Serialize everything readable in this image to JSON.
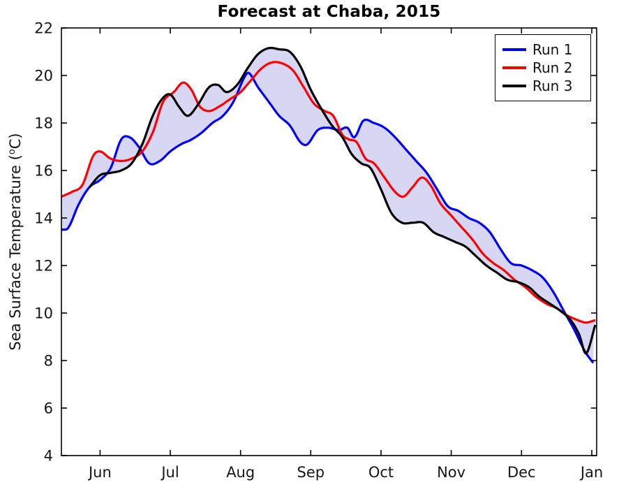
{
  "figure": {
    "background_color": "#ffffff",
    "axis_color": "#000000",
    "tick_label_color": "#151515"
  },
  "chart_data": {
    "type": "line",
    "title": "Forecast at Chaba, 2015",
    "xlabel": "",
    "ylabel": {
      "prefix": "Sea Surface Temperature (",
      "sup": "o",
      "suffix": "C)"
    },
    "x_range": [
      0.45,
      8.07
    ],
    "y_range": [
      4,
      22
    ],
    "y_ticks": [
      4,
      6,
      8,
      10,
      12,
      14,
      16,
      18,
      20,
      22
    ],
    "x_ticks": [
      {
        "x": 1,
        "label": "Jun"
      },
      {
        "x": 2,
        "label": "Jul"
      },
      {
        "x": 3,
        "label": "Aug"
      },
      {
        "x": 4,
        "label": "Sep"
      },
      {
        "x": 5,
        "label": "Oct"
      },
      {
        "x": 6,
        "label": "Nov"
      },
      {
        "x": 7,
        "label": "Dec"
      },
      {
        "x": 8,
        "label": "Jan"
      }
    ],
    "grid": false,
    "legend_position": "top-right",
    "band": {
      "type": "min-max-envelope",
      "color": "#7b7bdc",
      "opacity": 0.3
    },
    "series": [
      {
        "name": "Run 1",
        "color": "#0000ff",
        "points": [
          [
            0.45,
            13.5
          ],
          [
            0.55,
            13.6
          ],
          [
            0.7,
            14.6
          ],
          [
            0.85,
            15.3
          ],
          [
            1.0,
            15.6
          ],
          [
            1.15,
            16.1
          ],
          [
            1.3,
            17.3
          ],
          [
            1.42,
            17.4
          ],
          [
            1.55,
            17.0
          ],
          [
            1.7,
            16.3
          ],
          [
            1.85,
            16.4
          ],
          [
            2.0,
            16.8
          ],
          [
            2.15,
            17.1
          ],
          [
            2.3,
            17.3
          ],
          [
            2.45,
            17.6
          ],
          [
            2.6,
            18.0
          ],
          [
            2.75,
            18.3
          ],
          [
            2.9,
            18.9
          ],
          [
            3.05,
            19.9
          ],
          [
            3.12,
            20.1
          ],
          [
            3.25,
            19.5
          ],
          [
            3.4,
            18.9
          ],
          [
            3.55,
            18.3
          ],
          [
            3.7,
            17.9
          ],
          [
            3.85,
            17.2
          ],
          [
            3.95,
            17.1
          ],
          [
            4.1,
            17.7
          ],
          [
            4.25,
            17.8
          ],
          [
            4.4,
            17.7
          ],
          [
            4.52,
            17.8
          ],
          [
            4.62,
            17.4
          ],
          [
            4.75,
            18.1
          ],
          [
            4.9,
            18.0
          ],
          [
            5.05,
            17.8
          ],
          [
            5.2,
            17.4
          ],
          [
            5.35,
            16.9
          ],
          [
            5.5,
            16.4
          ],
          [
            5.65,
            15.9
          ],
          [
            5.8,
            15.2
          ],
          [
            5.95,
            14.5
          ],
          [
            6.1,
            14.3
          ],
          [
            6.25,
            14.0
          ],
          [
            6.4,
            13.8
          ],
          [
            6.55,
            13.4
          ],
          [
            6.7,
            12.7
          ],
          [
            6.85,
            12.1
          ],
          [
            7.0,
            12.0
          ],
          [
            7.15,
            11.8
          ],
          [
            7.3,
            11.5
          ],
          [
            7.45,
            10.9
          ],
          [
            7.6,
            10.1
          ],
          [
            7.75,
            9.3
          ],
          [
            7.9,
            8.4
          ],
          [
            8.02,
            7.9
          ]
        ]
      },
      {
        "name": "Run 2",
        "color": "#ff0000",
        "points": [
          [
            0.45,
            14.9
          ],
          [
            0.6,
            15.1
          ],
          [
            0.75,
            15.4
          ],
          [
            0.9,
            16.6
          ],
          [
            1.0,
            16.8
          ],
          [
            1.15,
            16.5
          ],
          [
            1.3,
            16.4
          ],
          [
            1.45,
            16.5
          ],
          [
            1.6,
            16.8
          ],
          [
            1.75,
            17.6
          ],
          [
            1.9,
            18.9
          ],
          [
            2.05,
            19.3
          ],
          [
            2.18,
            19.7
          ],
          [
            2.3,
            19.4
          ],
          [
            2.42,
            18.7
          ],
          [
            2.55,
            18.5
          ],
          [
            2.7,
            18.7
          ],
          [
            2.85,
            19.0
          ],
          [
            3.0,
            19.3
          ],
          [
            3.15,
            19.8
          ],
          [
            3.3,
            20.3
          ],
          [
            3.45,
            20.55
          ],
          [
            3.6,
            20.5
          ],
          [
            3.75,
            20.2
          ],
          [
            3.9,
            19.5
          ],
          [
            4.05,
            18.8
          ],
          [
            4.2,
            18.5
          ],
          [
            4.32,
            18.3
          ],
          [
            4.45,
            17.5
          ],
          [
            4.55,
            17.3
          ],
          [
            4.65,
            17.2
          ],
          [
            4.78,
            16.5
          ],
          [
            4.9,
            16.3
          ],
          [
            5.05,
            15.7
          ],
          [
            5.2,
            15.1
          ],
          [
            5.32,
            14.9
          ],
          [
            5.45,
            15.3
          ],
          [
            5.58,
            15.7
          ],
          [
            5.7,
            15.4
          ],
          [
            5.85,
            14.6
          ],
          [
            6.0,
            14.1
          ],
          [
            6.15,
            13.6
          ],
          [
            6.3,
            13.1
          ],
          [
            6.45,
            12.5
          ],
          [
            6.6,
            12.1
          ],
          [
            6.75,
            11.8
          ],
          [
            6.9,
            11.4
          ],
          [
            7.05,
            11.1
          ],
          [
            7.2,
            10.7
          ],
          [
            7.35,
            10.4
          ],
          [
            7.5,
            10.2
          ],
          [
            7.65,
            9.9
          ],
          [
            7.8,
            9.7
          ],
          [
            7.92,
            9.6
          ],
          [
            8.05,
            9.7
          ]
        ]
      },
      {
        "name": "Run 3",
        "color": "#000000",
        "points": [
          [
            0.85,
            15.3
          ],
          [
            1.0,
            15.8
          ],
          [
            1.15,
            15.9
          ],
          [
            1.3,
            16.0
          ],
          [
            1.45,
            16.3
          ],
          [
            1.6,
            17.1
          ],
          [
            1.75,
            18.3
          ],
          [
            1.88,
            19.0
          ],
          [
            2.0,
            19.2
          ],
          [
            2.12,
            18.7
          ],
          [
            2.25,
            18.3
          ],
          [
            2.4,
            18.8
          ],
          [
            2.55,
            19.5
          ],
          [
            2.68,
            19.6
          ],
          [
            2.8,
            19.3
          ],
          [
            2.95,
            19.6
          ],
          [
            3.1,
            20.3
          ],
          [
            3.25,
            20.9
          ],
          [
            3.4,
            21.15
          ],
          [
            3.55,
            21.1
          ],
          [
            3.7,
            21.0
          ],
          [
            3.85,
            20.4
          ],
          [
            4.0,
            19.4
          ],
          [
            4.15,
            18.6
          ],
          [
            4.3,
            17.9
          ],
          [
            4.45,
            17.4
          ],
          [
            4.58,
            16.7
          ],
          [
            4.72,
            16.3
          ],
          [
            4.85,
            16.1
          ],
          [
            5.0,
            15.2
          ],
          [
            5.15,
            14.2
          ],
          [
            5.3,
            13.8
          ],
          [
            5.45,
            13.8
          ],
          [
            5.6,
            13.8
          ],
          [
            5.75,
            13.4
          ],
          [
            5.9,
            13.2
          ],
          [
            6.05,
            13.0
          ],
          [
            6.2,
            12.8
          ],
          [
            6.35,
            12.4
          ],
          [
            6.5,
            12.0
          ],
          [
            6.65,
            11.7
          ],
          [
            6.8,
            11.4
          ],
          [
            6.95,
            11.3
          ],
          [
            7.1,
            11.1
          ],
          [
            7.25,
            10.7
          ],
          [
            7.4,
            10.4
          ],
          [
            7.55,
            10.1
          ],
          [
            7.7,
            9.7
          ],
          [
            7.82,
            9.1
          ],
          [
            7.92,
            8.3
          ],
          [
            8.05,
            9.5
          ]
        ]
      }
    ]
  }
}
